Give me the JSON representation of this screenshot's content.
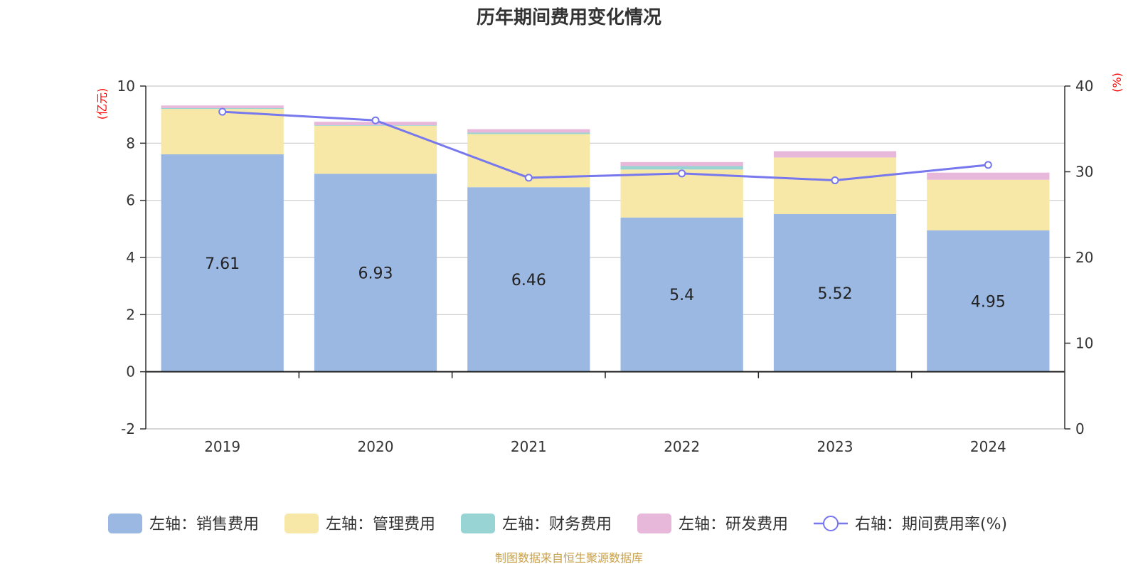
{
  "chart_data": {
    "type": "bar",
    "title": "历年期间费用变化情况",
    "categories": [
      "2019",
      "2020",
      "2021",
      "2022",
      "2023",
      "2024"
    ],
    "series": [
      {
        "name": "左轴：销售费用",
        "axis": "left",
        "color": "#9bb8e3",
        "values": [
          7.61,
          6.93,
          6.46,
          5.4,
          5.52,
          4.95
        ]
      },
      {
        "name": "左轴：管理费用",
        "axis": "left",
        "color": "#f7e8a8",
        "values": [
          1.59,
          1.68,
          1.86,
          1.68,
          1.98,
          1.77
        ]
      },
      {
        "name": "左轴：财务费用",
        "axis": "left",
        "color": "#98d4d4",
        "values": [
          0.03,
          0.02,
          0.05,
          0.12,
          -0.02,
          -0.01
        ]
      },
      {
        "name": "左轴：研发费用",
        "axis": "left",
        "color": "#e8b8da",
        "values": [
          0.09,
          0.12,
          0.12,
          0.14,
          0.22,
          0.25
        ]
      },
      {
        "name": "右轴：期间费用率(%)",
        "axis": "right",
        "type": "line",
        "color": "#7777ee",
        "values": [
          37.0,
          36.0,
          29.3,
          29.8,
          29.0,
          30.8
        ]
      }
    ],
    "data_labels_series": "左轴：销售费用",
    "y_left": {
      "unit": "(亿元)",
      "ylim": [
        -2,
        10
      ],
      "ticks": [
        "10",
        "8",
        "6",
        "4",
        "2",
        "0",
        "-2"
      ]
    },
    "y_right": {
      "unit": "(%)",
      "ylim": [
        0,
        40
      ],
      "ticks": [
        "40",
        "30",
        "20",
        "10",
        "0"
      ]
    },
    "grid": true,
    "legend_position": "bottom"
  },
  "source_text": "制图数据来自恒生聚源数据库"
}
